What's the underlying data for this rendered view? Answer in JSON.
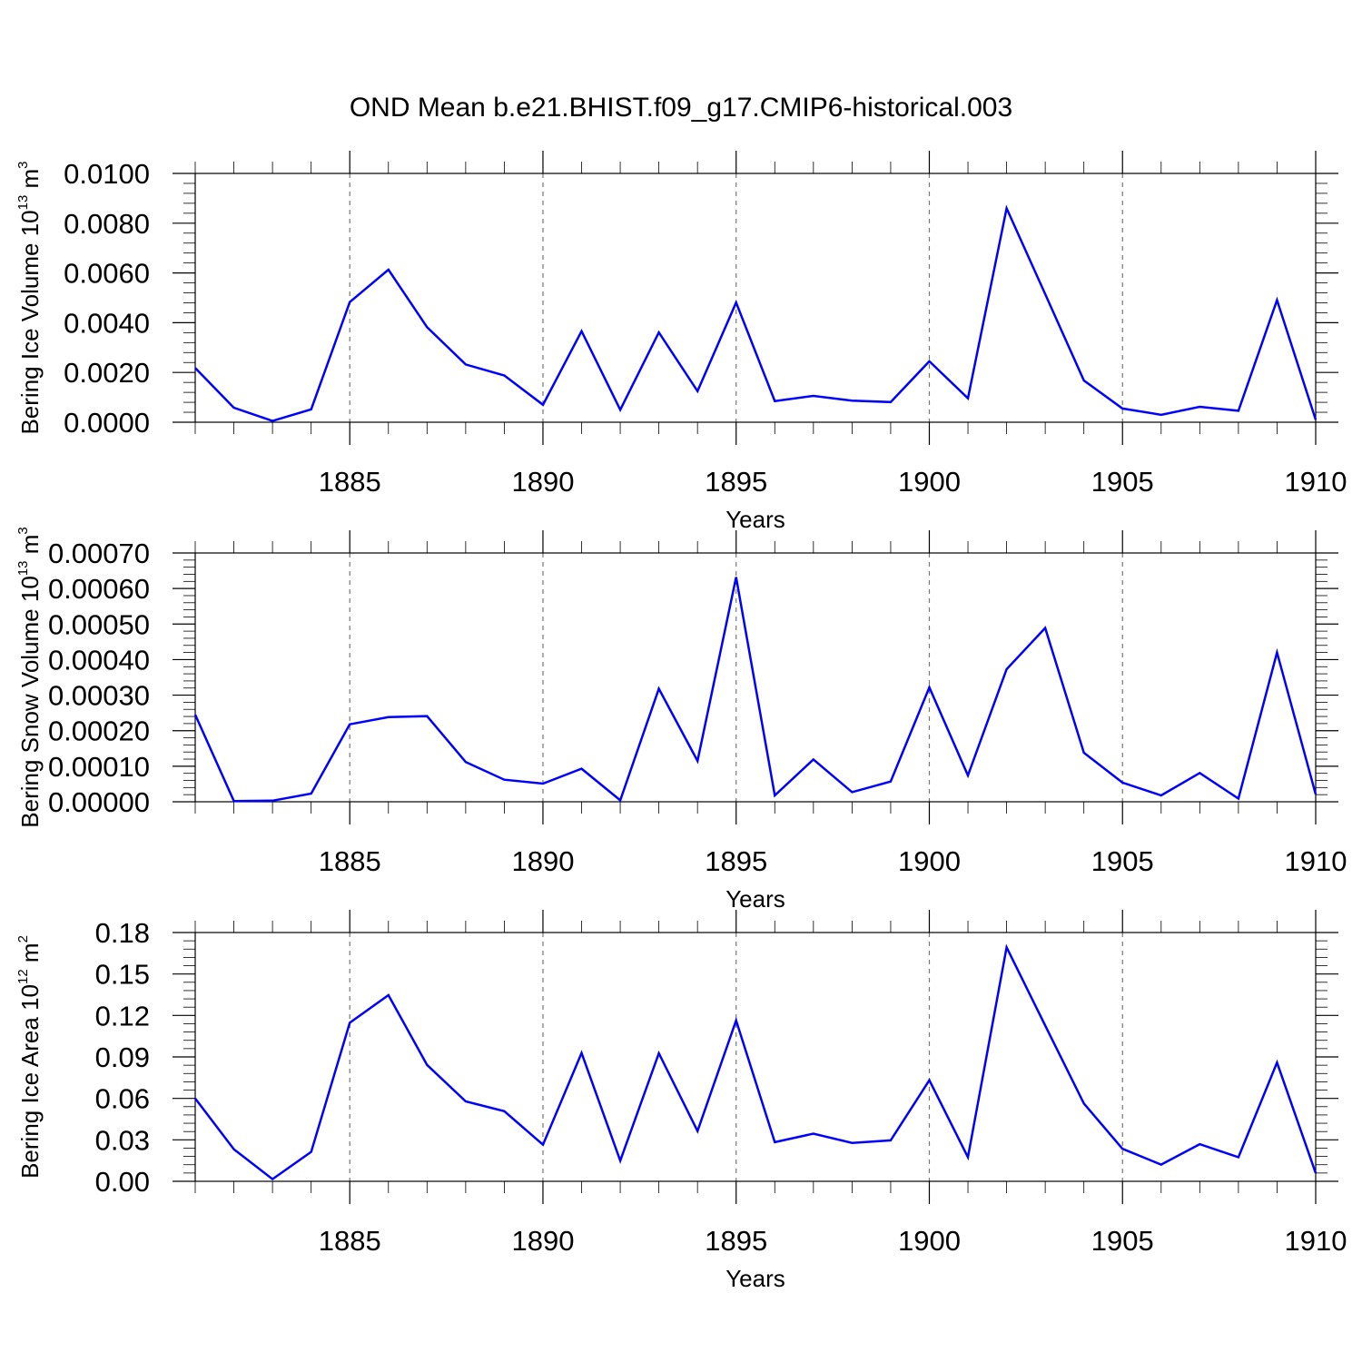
{
  "chart_data": {
    "type": "line",
    "title": "OND Mean b.e21.BHIST.f09_g17.CMIP6-historical.003",
    "x": [
      1881,
      1882,
      1883,
      1884,
      1885,
      1886,
      1887,
      1888,
      1889,
      1890,
      1891,
      1892,
      1893,
      1894,
      1895,
      1896,
      1897,
      1898,
      1899,
      1900,
      1901,
      1902,
      1903,
      1904,
      1905,
      1906,
      1907,
      1908,
      1909,
      1910
    ],
    "xlim": [
      1881,
      1910
    ],
    "xticks": [
      1885,
      1890,
      1895,
      1900,
      1905,
      1910
    ],
    "xtick_labels": [
      "1885",
      "1890",
      "1895",
      "1900",
      "1905",
      "1910"
    ],
    "xlabel": "Years",
    "grid": "vertical dashed at major x ticks",
    "panels": [
      {
        "ylabel_text": "Bering Ice Volume 10",
        "ylabel_exp": "13",
        "ylabel_unit": "m",
        "ylabel_unit_exp": "3",
        "ylim": [
          0,
          0.01
        ],
        "yticks": [
          0,
          0.002,
          0.004,
          0.006,
          0.008,
          0.01
        ],
        "ytick_labels": [
          "0.0000",
          "0.0020",
          "0.0040",
          "0.0060",
          "0.0080",
          "0.0100"
        ],
        "xlabel": "Years",
        "series": [
          {
            "name": "Bering Ice Volume",
            "values": [
              0.00218,
              0.00058,
              5e-05,
              0.00052,
              0.00483,
              0.00613,
              0.00382,
              0.00232,
              0.00188,
              0.0007,
              0.00366,
              0.0005,
              0.00361,
              0.00125,
              0.00481,
              0.00085,
              0.00106,
              0.00087,
              0.00081,
              0.00245,
              0.00096,
              0.0086,
              0.00515,
              0.00168,
              0.00055,
              0.0003,
              0.00062,
              0.00046,
              0.00491,
              0.0001
            ]
          }
        ]
      },
      {
        "ylabel_text": "Bering Snow Volume 10",
        "ylabel_exp": "13",
        "ylabel_unit": "m",
        "ylabel_unit_exp": "3",
        "ylim": [
          0,
          0.0007
        ],
        "yticks": [
          0,
          0.0001,
          0.0002,
          0.0003,
          0.0004,
          0.0005,
          0.0006,
          0.0007
        ],
        "ytick_labels": [
          "0.00000",
          "0.00010",
          "0.00020",
          "0.00030",
          "0.00040",
          "0.00050",
          "0.00060",
          "0.00070"
        ],
        "xlabel": "Years",
        "series": [
          {
            "name": "Bering Snow Volume",
            "values": [
              0.000245,
              2e-06,
              3e-06,
              2.3e-05,
              0.000218,
              0.000238,
              0.000241,
              0.000112,
              6.2e-05,
              5.1e-05,
              9.3e-05,
              4e-06,
              0.000318,
              0.000115,
              0.000632,
              1.8e-05,
              0.000119,
              2.7e-05,
              5.7e-05,
              0.000322,
              7.4e-05,
              0.000373,
              0.000489,
              0.000138,
              5.4e-05,
              1.8e-05,
              8.1e-05,
              9e-06,
              0.00042,
              2.1e-05
            ]
          }
        ]
      },
      {
        "ylabel_text": "Bering Ice Area 10",
        "ylabel_exp": "12",
        "ylabel_unit": "m",
        "ylabel_unit_exp": "2",
        "ylim": [
          0,
          0.18
        ],
        "yticks": [
          0,
          0.03,
          0.06,
          0.09,
          0.12,
          0.15,
          0.18
        ],
        "ytick_labels": [
          "0.00",
          "0.03",
          "0.06",
          "0.09",
          "0.12",
          "0.15",
          "0.18"
        ],
        "xlabel": "Years",
        "series": [
          {
            "name": "Bering Ice Area",
            "values": [
              0.06,
              0.0232,
              0.0016,
              0.0213,
              0.1147,
              0.1347,
              0.0842,
              0.0578,
              0.0507,
              0.0265,
              0.0928,
              0.0149,
              0.0926,
              0.0363,
              0.1164,
              0.0283,
              0.0345,
              0.0278,
              0.0296,
              0.0731,
              0.0174,
              0.1693,
              0.1127,
              0.0563,
              0.0235,
              0.0121,
              0.0269,
              0.0174,
              0.0859,
              0.006
            ]
          }
        ]
      }
    ]
  }
}
